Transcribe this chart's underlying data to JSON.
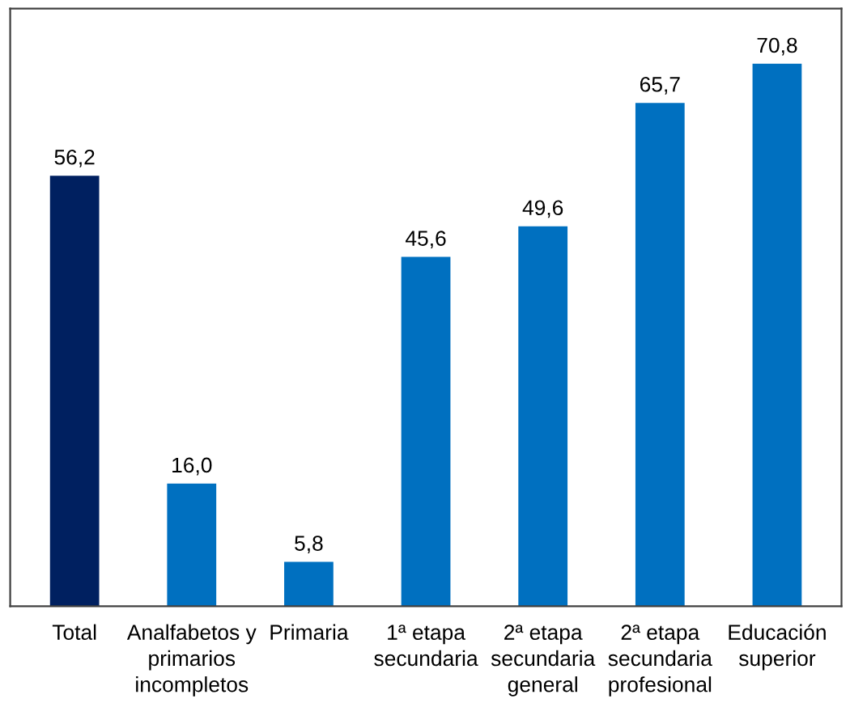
{
  "chart_data": {
    "type": "bar",
    "categories": [
      "Total",
      "Analfabetos y\nprimarios\nincompletos",
      "Primaria",
      "1ª etapa\nsecundaria",
      "2ª etapa\nsecundaria\ngeneral",
      "2ª etapa\nsecundaria\nprofesional",
      "Educación\nsuperior"
    ],
    "values": [
      56.2,
      16.0,
      5.8,
      45.6,
      49.6,
      65.7,
      70.8
    ],
    "value_labels": [
      "56,2",
      "16,0",
      "5,8",
      "45,6",
      "49,6",
      "65,7",
      "70,8"
    ],
    "colors": [
      "#002060",
      "#0070c0",
      "#0070c0",
      "#0070c0",
      "#0070c0",
      "#0070c0",
      "#0070c0"
    ],
    "ylim": [
      0,
      78
    ],
    "grid": false,
    "legend": false
  }
}
